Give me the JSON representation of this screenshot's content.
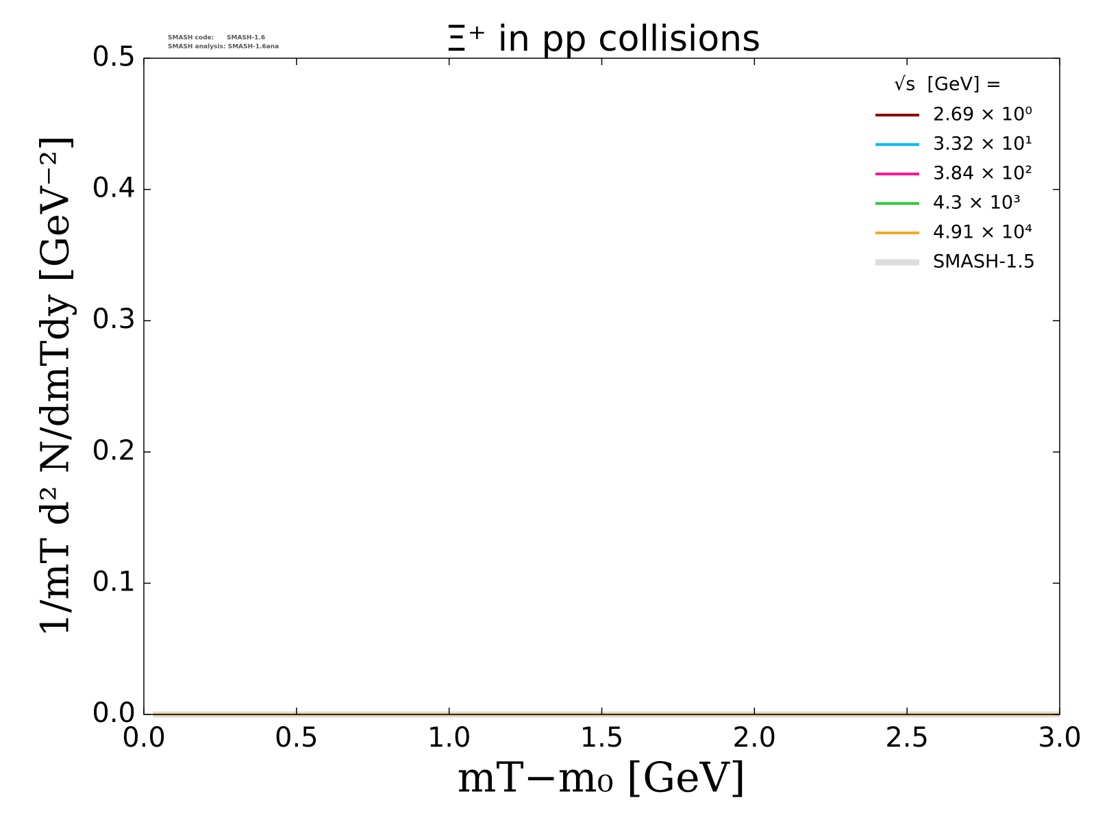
{
  "chart_data": {
    "type": "line",
    "title": "Ξ⁺ in pp collisions",
    "annotations": [
      "SMASH code:      SMASH-1.6",
      "SMASH analysis: SMASH-1.6ana"
    ],
    "x_label": "mT−m₀ [GeV]",
    "y_label": "1/mT d² N/dmTdy [GeV⁻²]",
    "legend_title": "√s  [GeV] =",
    "legend": "upper right",
    "grid": false,
    "x": [
      0.03,
      0.5,
      1.0,
      1.5,
      2.0,
      2.5,
      3.0
    ],
    "series": [
      {
        "name": "SMASH-1.5",
        "color": "#dddddd",
        "values": [
          0,
          0,
          0,
          0,
          0,
          0,
          0
        ]
      },
      {
        "name": "2.69 × 10⁰",
        "color": "#8b0000",
        "values": [
          0,
          0,
          0,
          0,
          0,
          0,
          0
        ]
      },
      {
        "name": "3.32 × 10¹",
        "color": "#00bfff",
        "values": [
          0,
          0,
          0,
          0,
          0,
          0,
          0
        ]
      },
      {
        "name": "3.84 × 10²",
        "color": "#ff1493",
        "values": [
          0,
          0,
          0,
          0,
          0,
          0,
          0
        ]
      },
      {
        "name": "4.3 × 10³",
        "color": "#32cd32",
        "values": [
          0,
          0,
          0,
          0,
          0,
          0,
          0
        ]
      },
      {
        "name": "4.91 × 10⁴",
        "color": "#f5a623",
        "values": [
          0,
          0,
          0,
          0,
          0,
          0,
          0
        ]
      }
    ],
    "xlim": [
      0,
      3
    ],
    "ylim": [
      0,
      0.5
    ],
    "xticks": [
      {
        "value": 0,
        "label": "0.0"
      },
      0.5,
      {
        "value": 1,
        "label": "1.0"
      },
      1.5,
      {
        "value": 2,
        "label": "2.0"
      },
      2.5,
      {
        "value": 3,
        "label": "3.0"
      }
    ],
    "yticks": [
      {
        "value": 0,
        "label": "0.0"
      },
      0.1,
      0.2,
      0.3,
      0.4,
      0.5
    ]
  }
}
